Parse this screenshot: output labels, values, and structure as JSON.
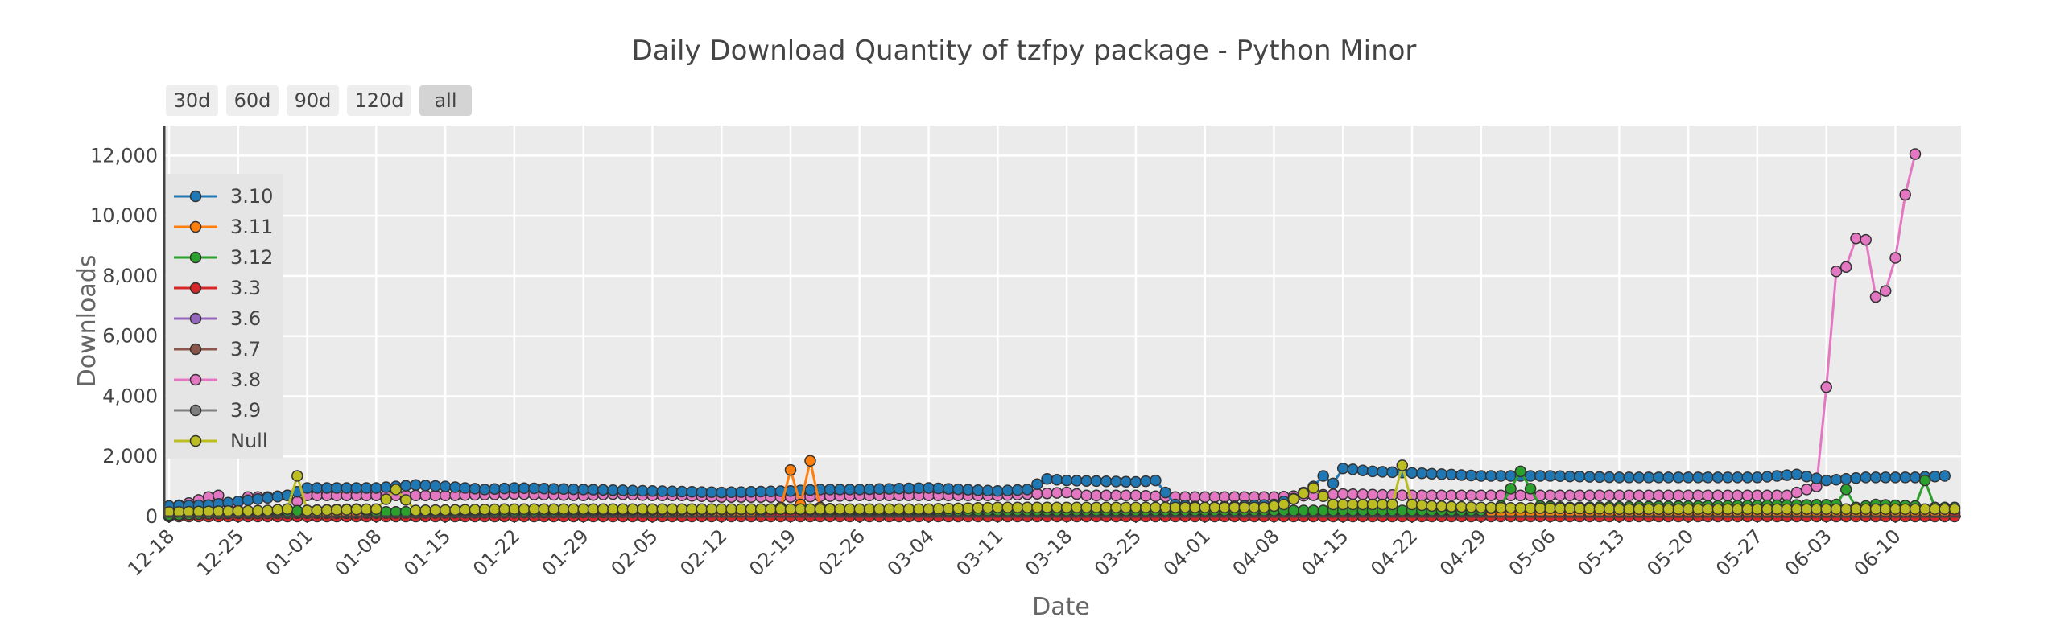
{
  "chart_data": {
    "type": "line",
    "title": "Daily Download Quantity of tzfpy package - Python Minor",
    "xlabel": "Date",
    "ylabel": "Downloads",
    "ylim": [
      0,
      13000
    ],
    "yticks": [
      0,
      2000,
      4000,
      6000,
      8000,
      10000,
      12000
    ],
    "ytick_labels": [
      "0",
      "2,000",
      "4,000",
      "6,000",
      "8,000",
      "10,000",
      "12,000"
    ],
    "x_start": "12-18",
    "x_end": "06-16",
    "xtick_labels": [
      "12-18",
      "12-25",
      "01-01",
      "01-08",
      "01-15",
      "01-22",
      "01-29",
      "02-05",
      "02-12",
      "02-19",
      "02-26",
      "03-04",
      "03-11",
      "03-18",
      "03-25",
      "04-01",
      "04-08",
      "04-15",
      "04-22",
      "04-29",
      "05-06",
      "05-13",
      "05-20",
      "05-27",
      "06-03",
      "06-10"
    ],
    "grid": true,
    "legend_position": "top-left",
    "range_buttons": [
      "30d",
      "60d",
      "90d",
      "120d",
      "all"
    ],
    "active_range": "all",
    "series": [
      {
        "name": "3.10",
        "color": "#1f77b4",
        "points": [
          [
            "12-18",
            350
          ],
          [
            "12-22",
            380
          ],
          [
            "12-30",
            700
          ],
          [
            "01-01",
            950
          ],
          [
            "01-08",
            950
          ],
          [
            "01-12",
            1050
          ],
          [
            "01-15",
            1000
          ],
          [
            "01-19",
            900
          ],
          [
            "01-22",
            950
          ],
          [
            "01-29",
            900
          ],
          [
            "02-05",
            850
          ],
          [
            "02-12",
            800
          ],
          [
            "02-19",
            850
          ],
          [
            "02-22",
            900
          ],
          [
            "02-26",
            900
          ],
          [
            "03-04",
            950
          ],
          [
            "03-11",
            850
          ],
          [
            "03-14",
            900
          ],
          [
            "03-16",
            1250
          ],
          [
            "03-18",
            1200
          ],
          [
            "03-25",
            1150
          ],
          [
            "03-27",
            1200
          ],
          [
            "03-29",
            400
          ],
          [
            "04-01",
            300
          ],
          [
            "04-08",
            400
          ],
          [
            "04-10",
            600
          ],
          [
            "04-12",
            1000
          ],
          [
            "04-13",
            1350
          ],
          [
            "04-14",
            1100
          ],
          [
            "04-15",
            1600
          ],
          [
            "04-18",
            1500
          ],
          [
            "04-22",
            1450
          ],
          [
            "04-29",
            1350
          ],
          [
            "05-06",
            1350
          ],
          [
            "05-13",
            1300
          ],
          [
            "05-20",
            1300
          ],
          [
            "05-27",
            1300
          ],
          [
            "05-31",
            1400
          ],
          [
            "06-03",
            1200
          ],
          [
            "06-07",
            1300
          ],
          [
            "06-12",
            1300
          ],
          [
            "06-15",
            1350
          ]
        ]
      },
      {
        "name": "3.11",
        "color": "#ff7f0e",
        "points": [
          [
            "12-18",
            100
          ],
          [
            "02-15",
            150
          ],
          [
            "02-18",
            300
          ],
          [
            "02-19",
            1550
          ],
          [
            "02-20",
            400
          ],
          [
            "02-21",
            1850
          ],
          [
            "02-22",
            300
          ],
          [
            "02-26",
            150
          ],
          [
            "06-15",
            150
          ]
        ]
      },
      {
        "name": "3.12",
        "color": "#2ca02c",
        "points": [
          [
            "12-18",
            50
          ],
          [
            "01-01",
            200
          ],
          [
            "01-06",
            250
          ],
          [
            "01-08",
            150
          ],
          [
            "02-19",
            250
          ],
          [
            "02-22",
            200
          ],
          [
            "04-29",
            200
          ],
          [
            "05-01",
            350
          ],
          [
            "05-03",
            1500
          ],
          [
            "05-05",
            350
          ],
          [
            "05-08",
            300
          ],
          [
            "06-04",
            400
          ],
          [
            "06-05",
            900
          ],
          [
            "06-06",
            300
          ],
          [
            "06-08",
            400
          ],
          [
            "06-12",
            350
          ],
          [
            "06-13",
            1200
          ],
          [
            "06-14",
            300
          ],
          [
            "06-16",
            300
          ]
        ]
      },
      {
        "name": "3.3",
        "color": "#d62728",
        "points": [
          [
            "12-18",
            0
          ],
          [
            "06-16",
            0
          ]
        ]
      },
      {
        "name": "3.6",
        "color": "#9467bd",
        "points": [
          [
            "12-18",
            20
          ],
          [
            "06-16",
            20
          ]
        ]
      },
      {
        "name": "3.7",
        "color": "#8c564b",
        "points": [
          [
            "12-18",
            80
          ],
          [
            "03-11",
            100
          ],
          [
            "03-14",
            250
          ],
          [
            "03-18",
            150
          ],
          [
            "06-16",
            100
          ]
        ]
      },
      {
        "name": "3.8",
        "color": "#e377c2",
        "points": [
          [
            "12-18",
            300
          ],
          [
            "12-20",
            450
          ],
          [
            "12-22",
            650
          ],
          [
            "12-23",
            700
          ],
          [
            "12-25",
            200
          ],
          [
            "12-26",
            650
          ],
          [
            "12-28",
            650
          ],
          [
            "12-30",
            700
          ],
          [
            "12-31",
            500
          ],
          [
            "01-01",
            700
          ],
          [
            "01-08",
            700
          ],
          [
            "01-15",
            700
          ],
          [
            "01-22",
            750
          ],
          [
            "01-29",
            700
          ],
          [
            "02-01",
            750
          ],
          [
            "02-05",
            700
          ],
          [
            "02-08",
            700
          ],
          [
            "02-12",
            650
          ],
          [
            "02-19",
            650
          ],
          [
            "02-26",
            700
          ],
          [
            "03-04",
            700
          ],
          [
            "03-11",
            700
          ],
          [
            "03-18",
            800
          ],
          [
            "03-20",
            700
          ],
          [
            "03-22",
            700
          ],
          [
            "03-25",
            700
          ],
          [
            "03-29",
            650
          ],
          [
            "04-01",
            650
          ],
          [
            "04-08",
            650
          ],
          [
            "04-15",
            750
          ],
          [
            "04-22",
            700
          ],
          [
            "04-29",
            700
          ],
          [
            "05-06",
            700
          ],
          [
            "05-13",
            700
          ],
          [
            "05-20",
            700
          ],
          [
            "05-27",
            700
          ],
          [
            "05-30",
            700
          ],
          [
            "06-02",
            1000
          ],
          [
            "06-03",
            4300
          ],
          [
            "06-04",
            8150
          ],
          [
            "06-05",
            8300
          ],
          [
            "06-06",
            9250
          ],
          [
            "06-07",
            9200
          ],
          [
            "06-08",
            7300
          ],
          [
            "06-09",
            7500
          ],
          [
            "06-10",
            8600
          ],
          [
            "06-11",
            10700
          ],
          [
            "06-12",
            12050
          ]
        ]
      },
      {
        "name": "3.9",
        "color": "#7f7f7f",
        "points": [
          [
            "12-18",
            100
          ],
          [
            "01-01",
            150
          ],
          [
            "01-15",
            150
          ],
          [
            "02-12",
            150
          ],
          [
            "03-11",
            200
          ],
          [
            "03-14",
            300
          ],
          [
            "03-18",
            200
          ],
          [
            "04-22",
            150
          ],
          [
            "05-27",
            150
          ],
          [
            "06-16",
            150
          ]
        ]
      },
      {
        "name": "Null",
        "color": "#bcbd22",
        "points": [
          [
            "12-18",
            150
          ],
          [
            "12-28",
            200
          ],
          [
            "12-30",
            250
          ],
          [
            "12-31",
            1350
          ],
          [
            "01-01",
            200
          ],
          [
            "01-08",
            250
          ],
          [
            "01-10",
            900
          ],
          [
            "01-12",
            200
          ],
          [
            "01-22",
            250
          ],
          [
            "02-12",
            250
          ],
          [
            "03-04",
            250
          ],
          [
            "03-11",
            300
          ],
          [
            "04-03",
            300
          ],
          [
            "04-07",
            300
          ],
          [
            "04-09",
            400
          ],
          [
            "04-12",
            950
          ],
          [
            "04-14",
            400
          ],
          [
            "04-20",
            400
          ],
          [
            "04-21",
            1700
          ],
          [
            "04-22",
            400
          ],
          [
            "04-24",
            350
          ],
          [
            "04-29",
            300
          ],
          [
            "05-13",
            250
          ],
          [
            "05-27",
            250
          ],
          [
            "06-03",
            250
          ],
          [
            "06-16",
            250
          ]
        ]
      }
    ]
  }
}
